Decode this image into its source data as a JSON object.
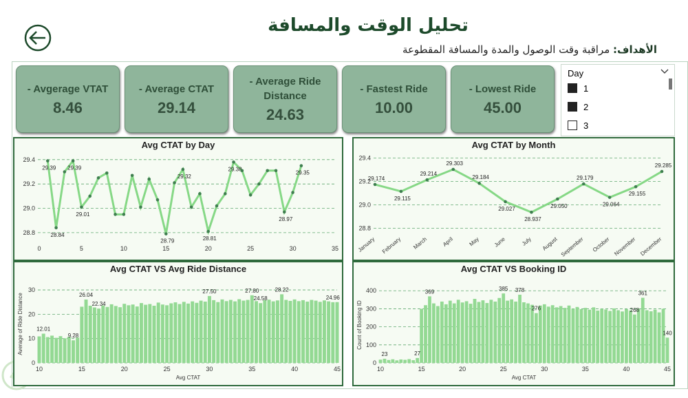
{
  "header": {
    "title": "تحليل الوقت والمسافة",
    "objective_label": "الأهداف:",
    "objective": "مراقبة وقت الوصول والمدة والمسافة المقطوعة"
  },
  "kpis": [
    {
      "label": "- Avgerage VTAT",
      "value": "8.46"
    },
    {
      "label": "- Average CTAT",
      "value": "29.14"
    },
    {
      "label": "- Average Ride Distance",
      "value": "24.63"
    },
    {
      "label": "- Fastest Ride",
      "value": "10.00"
    },
    {
      "label": "- Lowest Ride",
      "value": "45.00"
    }
  ],
  "slicer": {
    "title": "Day",
    "items": [
      "1",
      "2",
      "3"
    ],
    "checked": [
      true,
      true,
      false
    ]
  },
  "chart_data": [
    {
      "type": "line",
      "title": "Avg CTAT by Day",
      "color": "#86d886",
      "marker_color": "#3f7f4f",
      "x": [
        1,
        2,
        3,
        4,
        5,
        6,
        7,
        8,
        9,
        10,
        11,
        12,
        13,
        14,
        15,
        16,
        17,
        18,
        19,
        20,
        21,
        22,
        23,
        24,
        25,
        26,
        27,
        28,
        29,
        30,
        31
      ],
      "values": [
        29.39,
        28.84,
        29.3,
        29.39,
        29.01,
        29.1,
        29.25,
        29.29,
        28.95,
        28.95,
        29.27,
        29.01,
        29.24,
        29.07,
        28.79,
        29.21,
        29.32,
        29.01,
        29.12,
        28.81,
        29.02,
        29.12,
        29.38,
        29.31,
        29.11,
        29.2,
        29.31,
        29.31,
        28.97,
        29.13,
        29.35
      ],
      "value_labels": [
        "29.39",
        "28.84",
        null,
        "29.39",
        "29.01",
        null,
        null,
        null,
        null,
        null,
        null,
        null,
        null,
        null,
        "28.79",
        null,
        "29.32",
        null,
        null,
        "28.81",
        null,
        null,
        "29.38",
        null,
        null,
        null,
        null,
        null,
        "28.97",
        null,
        "29.35"
      ],
      "xlim": [
        0,
        35
      ],
      "xticks": [
        0,
        5,
        10,
        15,
        20,
        25,
        30,
        35
      ],
      "ylim": [
        28.72,
        29.45
      ],
      "yticks": [
        28.8,
        {
          "value": 29,
          "label": "29.0"
        },
        29.2,
        29.4
      ],
      "grid": true
    },
    {
      "type": "line",
      "title": "Avg CTAT by Month",
      "color": "#86d886",
      "marker_color": "#3f7f4f",
      "categories": [
        "January",
        "February",
        "March",
        "April",
        "May",
        "June",
        "July",
        "August",
        "September",
        "October",
        "November",
        "December"
      ],
      "values": [
        29.174,
        29.115,
        29.214,
        29.303,
        29.184,
        29.027,
        28.937,
        29.05,
        29.179,
        29.064,
        29.155,
        29.285
      ],
      "value_labels": [
        "29.174",
        "29.115",
        "29.214",
        "29.303",
        "29.184",
        "29.027",
        "28.937",
        "29.050",
        "29.179",
        "29.064",
        "29.155",
        "29.285"
      ],
      "ylim": [
        28.75,
        29.45
      ],
      "yticks": [
        28.8,
        {
          "value": 29,
          "label": "29.0"
        },
        29.2,
        29.4
      ],
      "grid": true
    },
    {
      "type": "bar",
      "title": "Avg CTAT VS Avg Ride Distance",
      "x_label": "Avg CTAT",
      "y_label": "Average of Ride Distance",
      "color": "#93d993",
      "x": [
        10,
        10.5,
        11,
        11.5,
        12,
        12.5,
        13,
        13.5,
        14,
        14.5,
        15,
        15.5,
        16,
        16.5,
        17,
        17.5,
        18,
        18.5,
        19,
        19.5,
        20,
        20.5,
        21,
        21.5,
        22,
        22.5,
        23,
        23.5,
        24,
        24.5,
        25,
        25.5,
        26,
        26.5,
        27,
        27.5,
        28,
        28.5,
        29,
        29.5,
        30,
        30.5,
        31,
        31.5,
        32,
        32.5,
        33,
        33.5,
        34,
        34.5,
        35,
        35.5,
        36,
        36.5,
        37,
        37.5,
        38,
        38.5,
        39,
        39.5,
        40,
        40.5,
        41,
        41.5,
        42,
        42.5,
        43,
        43.5,
        44,
        44.5,
        45
      ],
      "values": [
        10.9,
        12.01,
        10.6,
        11.2,
        10.3,
        11.0,
        10.1,
        10.7,
        9.28,
        10.4,
        23.1,
        26.04,
        23.5,
        22.8,
        22.34,
        23.6,
        23.0,
        24.1,
        23.4,
        22.9,
        24.3,
        23.7,
        24.0,
        23.2,
        24.6,
        23.9,
        24.2,
        23.5,
        24.8,
        24.0,
        23.7,
        24.5,
        24.9,
        24.2,
        25.1,
        24.4,
        25.3,
        24.7,
        25.6,
        25.2,
        27.5,
        25.8,
        25.0,
        26.1,
        25.4,
        25.9,
        25.3,
        26.2,
        25.6,
        25.9,
        27.8,
        25.4,
        24.58,
        25.8,
        26.0,
        25.3,
        25.7,
        28.22,
        25.9,
        25.5,
        26.1,
        25.4,
        25.8,
        25.2,
        25.9,
        25.6,
        25.1,
        25.7,
        25.3,
        24.96,
        25.0
      ],
      "value_labels": [
        null,
        "12.01",
        null,
        null,
        null,
        null,
        null,
        null,
        "9.28",
        null,
        null,
        "26.04",
        null,
        null,
        "22.34",
        null,
        null,
        null,
        null,
        null,
        null,
        null,
        null,
        null,
        null,
        null,
        null,
        null,
        null,
        null,
        null,
        null,
        null,
        null,
        null,
        null,
        null,
        null,
        null,
        null,
        "27.50",
        null,
        null,
        null,
        null,
        null,
        null,
        null,
        null,
        null,
        "27.80",
        null,
        "24.58",
        null,
        null,
        null,
        null,
        "28.22",
        null,
        null,
        null,
        null,
        null,
        null,
        null,
        null,
        null,
        null,
        null,
        "24.96",
        null
      ],
      "xlim": [
        10,
        45
      ],
      "xticks": [
        10,
        15,
        20,
        25,
        30,
        35,
        40,
        45
      ],
      "ylim": [
        0,
        32
      ],
      "yticks": [
        0,
        10,
        20,
        30
      ],
      "grid": true
    },
    {
      "type": "bar",
      "title": "Avg CTAT VS Booking ID",
      "x_label": "Avg CTAT",
      "y_label": "Count of Booking ID",
      "color": "#93d993",
      "x": [
        10,
        10.5,
        11,
        11.5,
        12,
        12.5,
        13,
        13.5,
        14,
        14.5,
        15,
        15.5,
        16,
        16.5,
        17,
        17.5,
        18,
        18.5,
        19,
        19.5,
        20,
        20.5,
        21,
        21.5,
        22,
        22.5,
        23,
        23.5,
        24,
        24.5,
        25,
        25.5,
        26,
        26.5,
        27,
        27.5,
        28,
        28.5,
        29,
        29.5,
        30,
        30.5,
        31,
        31.5,
        32,
        32.5,
        33,
        33.5,
        34,
        34.5,
        35,
        35.5,
        36,
        36.5,
        37,
        37.5,
        38,
        38.5,
        39,
        39.5,
        40,
        40.5,
        41,
        41.5,
        42,
        42.5,
        43,
        43.5,
        44,
        44.5,
        45
      ],
      "values": [
        18,
        23,
        16,
        20,
        14,
        19,
        17,
        21,
        15,
        27,
        300,
        320,
        369,
        330,
        315,
        340,
        325,
        345,
        330,
        350,
        335,
        342,
        328,
        355,
        338,
        347,
        332,
        350,
        340,
        360,
        385,
        345,
        352,
        340,
        378,
        336,
        330,
        322,
        276,
        318,
        325,
        312,
        320,
        308,
        315,
        305,
        318,
        300,
        310,
        298,
        305,
        295,
        308,
        290,
        300,
        296,
        288,
        302,
        292,
        285,
        298,
        290,
        268,
        300,
        361,
        292,
        286,
        295,
        280,
        300,
        140
      ],
      "value_labels": [
        null,
        "23",
        null,
        null,
        null,
        null,
        null,
        null,
        null,
        "27",
        null,
        null,
        "369",
        null,
        null,
        null,
        null,
        null,
        null,
        null,
        null,
        null,
        null,
        null,
        null,
        null,
        null,
        null,
        null,
        null,
        "385",
        null,
        null,
        null,
        "378",
        null,
        null,
        null,
        "276",
        null,
        null,
        null,
        null,
        null,
        null,
        null,
        null,
        null,
        null,
        null,
        null,
        null,
        null,
        null,
        null,
        null,
        null,
        null,
        null,
        null,
        null,
        null,
        "268",
        null,
        "361",
        null,
        null,
        null,
        null,
        null,
        "140"
      ],
      "xlim": [
        10,
        45
      ],
      "xticks": [
        10,
        15,
        20,
        25,
        30,
        35,
        40,
        45
      ],
      "ylim": [
        0,
        420
      ],
      "yticks": [
        0,
        100,
        200,
        300,
        400
      ],
      "grid": true
    }
  ]
}
